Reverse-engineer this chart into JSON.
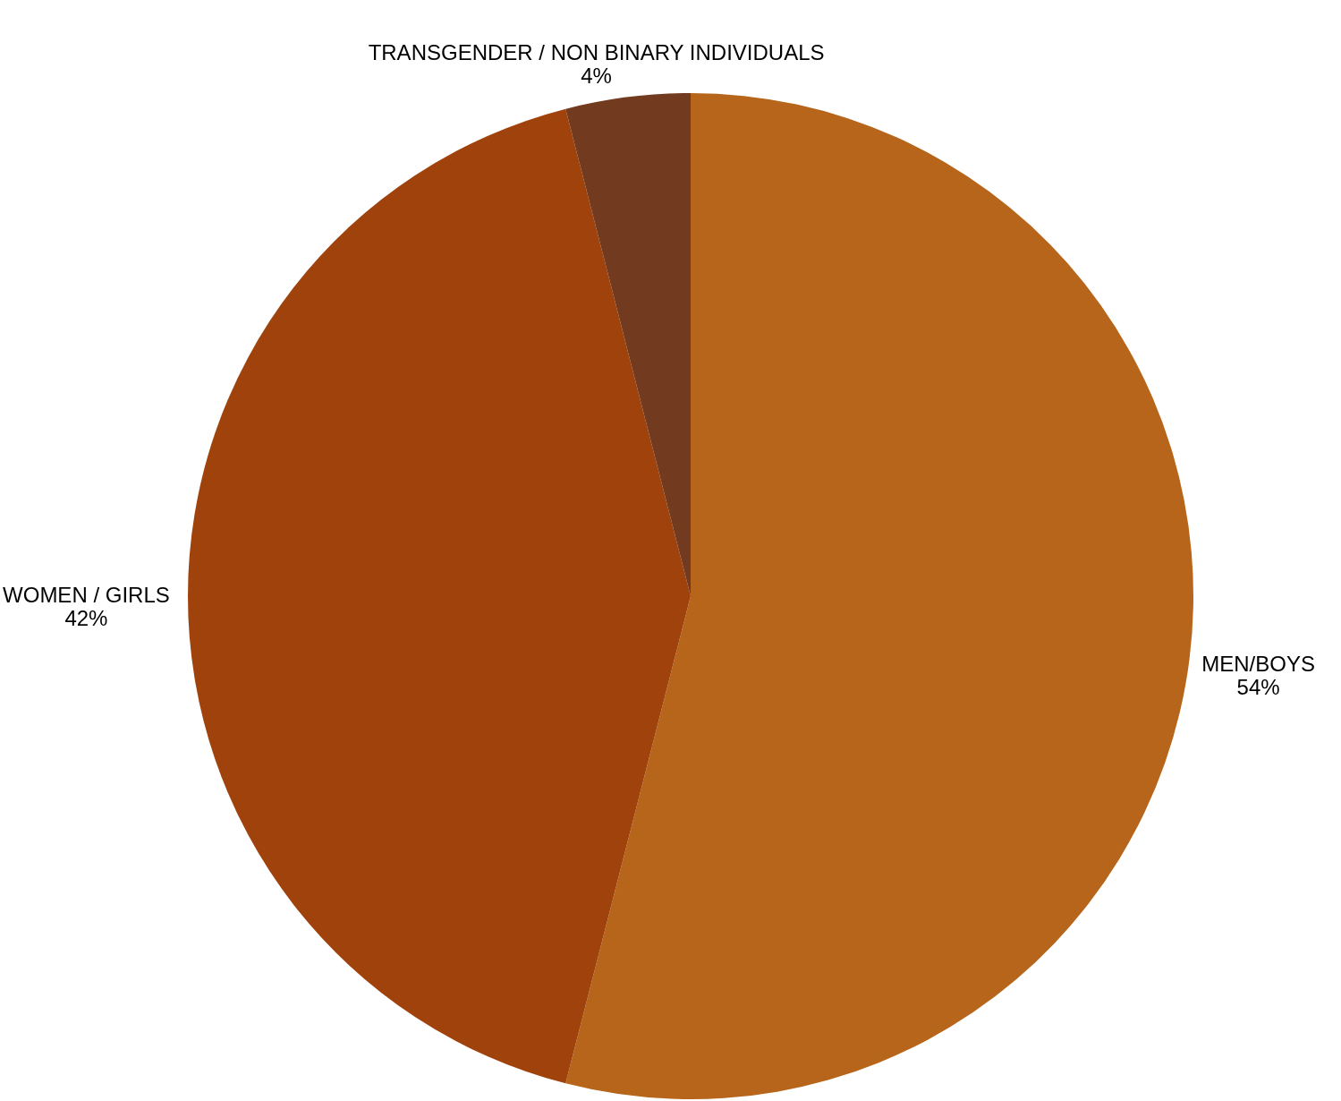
{
  "chart_data": {
    "type": "pie",
    "categories": [
      "MEN/BOYS",
      "WOMEN / GIRLS",
      "TRANSGENDER / NON BINARY INDIVIDUALS"
    ],
    "values": [
      54,
      42,
      4
    ],
    "colors": [
      "#b7651a",
      "#a0420c",
      "#723a1e"
    ],
    "value_labels": [
      "54%",
      "42%",
      "4%"
    ]
  }
}
